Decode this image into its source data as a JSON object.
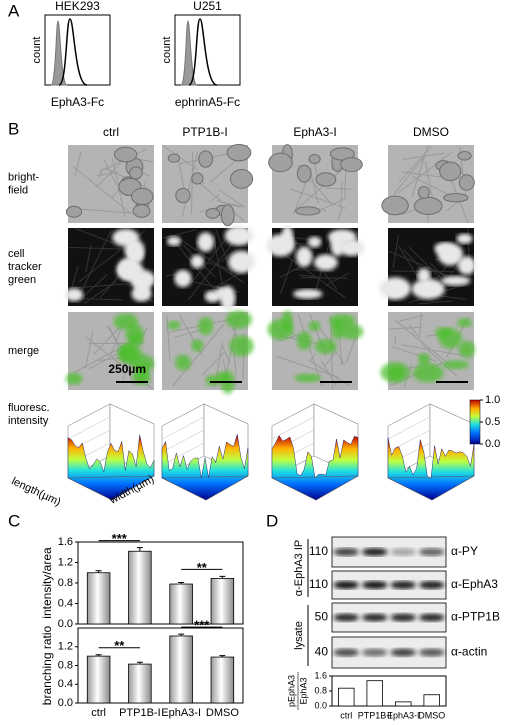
{
  "panel_a": {
    "label": "A",
    "plots": [
      {
        "title": "HEK293",
        "ylabel": "count",
        "xlabel": "EphA3-Fc"
      },
      {
        "title": "U251",
        "ylabel": "count",
        "xlabel": "ephrinA5-Fc"
      }
    ]
  },
  "panel_b": {
    "label": "B",
    "columns": [
      "ctrl",
      "PTP1B-I",
      "EphA3-I",
      "DMSO"
    ],
    "rows": [
      [
        "bright-",
        "field"
      ],
      [
        "cell",
        "tracker",
        "green"
      ],
      [
        "merge"
      ]
    ],
    "scale_bar": "250µm",
    "surface_zlabel": [
      "fluoresc.",
      "intensity"
    ],
    "surface_xlabel": "length(µm)",
    "surface_ylabel": "width(µm)",
    "colorbar_ticks": [
      {
        "value": 1,
        "label": "1.0"
      },
      0.5,
      {
        "value": 0,
        "label": "0.0"
      }
    ],
    "colorbar_lim": [
      0,
      1
    ]
  },
  "chart_data": [
    {
      "type": "bar",
      "label": "C",
      "categories": [
        "ctrl",
        "PTP1B-I",
        "EphA3-I",
        "DMSO"
      ],
      "color": "#d6d6d6",
      "subplots": [
        {
          "ylabel": "intensity/area",
          "values": [
            1.0,
            1.42,
            0.78,
            0.89
          ],
          "errors": [
            0.04,
            0.07,
            0.03,
            0.04
          ],
          "ylim": [
            0,
            1.6
          ],
          "yticks": [
            {
              "value": 0,
              "label": "0.0"
            },
            0.4,
            0.8,
            1.2,
            1.6
          ],
          "significance": [
            "***",
            "**"
          ]
        },
        {
          "ylabel": "branching ratio",
          "values": [
            1.0,
            0.83,
            1.43,
            0.98
          ],
          "errors": [
            0.03,
            0.04,
            0.04,
            0.03
          ],
          "ylim": [
            0,
            1.6
          ],
          "yticks": [
            {
              "value": 0,
              "label": "0.0"
            },
            0.4,
            0.8,
            1.2
          ],
          "significance": [
            "**",
            "***"
          ]
        }
      ]
    },
    {
      "type": "bar",
      "label": "D",
      "categories": [
        "ctrl",
        "PTP1B-I",
        "EphA3-I",
        "DMSO"
      ],
      "color": "#ffffff",
      "ylabel": [
        "pEphA3",
        "EphA3"
      ],
      "values": [
        0.95,
        1.35,
        0.22,
        0.6
      ],
      "ylim": [
        0,
        1.6
      ],
      "yticks": [
        {
          "value": 0,
          "label": "0.0"
        },
        0.8,
        1.6
      ],
      "blot": {
        "groups": [
          "α-EphA3 IP",
          "lysate"
        ],
        "markers": [
          "110",
          "110",
          "50",
          "40"
        ],
        "antibodies": [
          "α-PY",
          "α-EphA3",
          "α-PTP1B",
          "α-actin"
        ]
      }
    }
  ]
}
